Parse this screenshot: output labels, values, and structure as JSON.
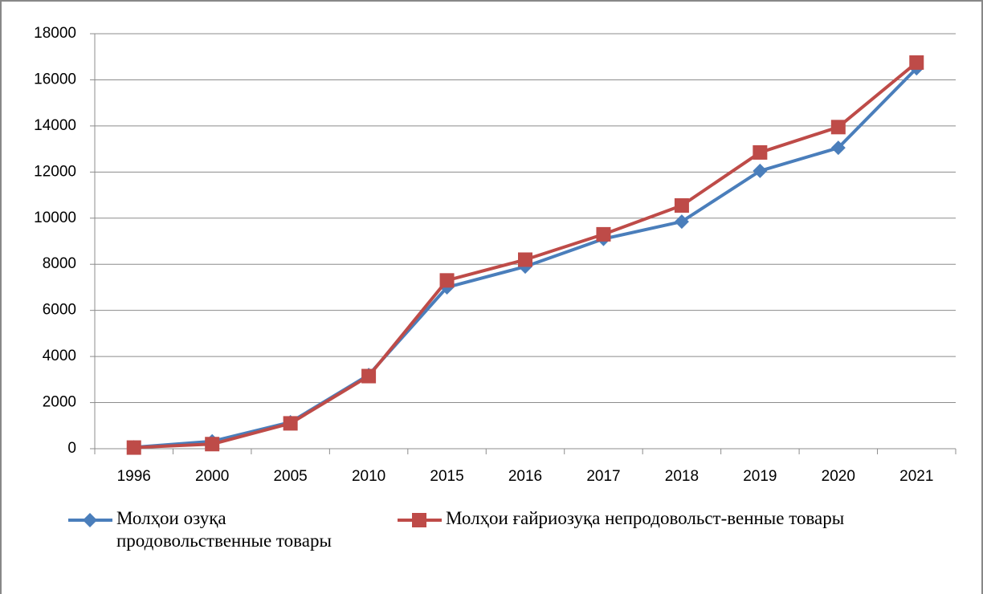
{
  "chart_data": {
    "type": "line",
    "categories": [
      "1996",
      "2000",
      "2005",
      "2010",
      "2015",
      "2016",
      "2017",
      "2018",
      "2019",
      "2020",
      "2021"
    ],
    "series": [
      {
        "name": "Молҳои озуқа продовольственные товары",
        "color": "#4a7ebb",
        "marker": "diamond",
        "values": [
          60,
          320,
          1150,
          3200,
          7000,
          7900,
          9100,
          9850,
          12050,
          13050,
          16500
        ]
      },
      {
        "name": "Молҳои ғайриозуқа непродовольст-венные товары",
        "color": "#be4b48",
        "marker": "square",
        "values": [
          50,
          200,
          1100,
          3150,
          7300,
          8200,
          9300,
          10550,
          12850,
          13950,
          16750
        ]
      }
    ],
    "ylim": [
      0,
      18000
    ],
    "yticks": [
      0,
      2000,
      4000,
      6000,
      8000,
      10000,
      12000,
      14000,
      16000,
      18000
    ],
    "grid": true,
    "legend": "bottom"
  }
}
